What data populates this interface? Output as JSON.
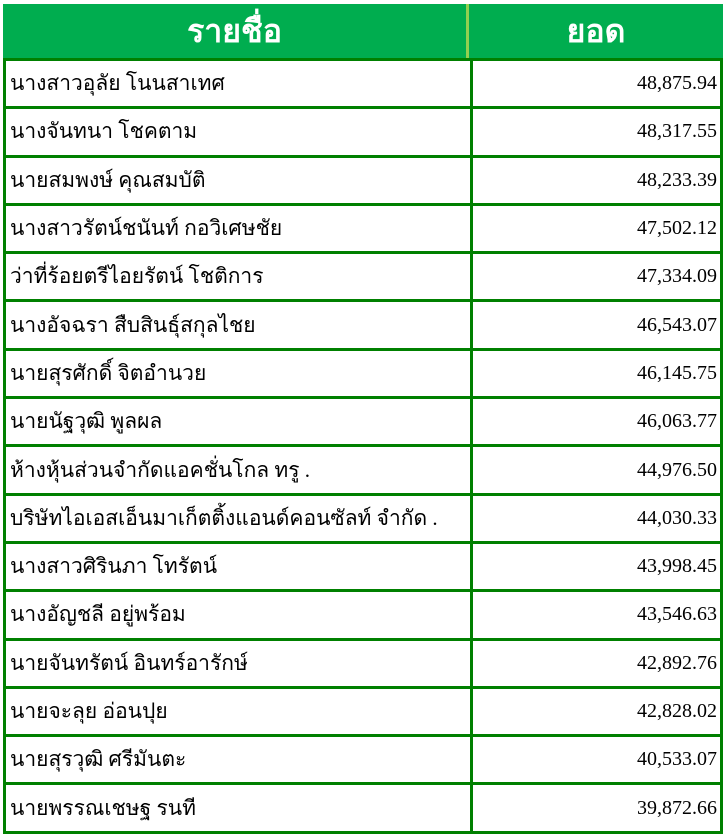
{
  "header": {
    "name_label": "รายชื่อ",
    "amount_label": "ยอด"
  },
  "colors": {
    "header_bg": "#00ad4f",
    "border": "#008000",
    "header_text": "#ffffff"
  },
  "rows": [
    {
      "name": "นางสาวอุลัย  โนนสาเทศ",
      "amount": "48,875.94"
    },
    {
      "name": "นางจันทนา โชคตาม",
      "amount": "48,317.55"
    },
    {
      "name": "นายสมพงษ์  คุณสมบัติ",
      "amount": "48,233.39"
    },
    {
      "name": "นางสาวรัตน์ชนันท์  กอวิเศษชัย",
      "amount": "47,502.12"
    },
    {
      "name": "ว่าที่ร้อยตรีไอยรัตน์  โชติการ",
      "amount": "47,334.09"
    },
    {
      "name": "นางอัจฉรา  สืบสินธุ์สกุลไชย",
      "amount": "46,543.07"
    },
    {
      "name": "นายสุรศักดิ์  จิตอำนวย",
      "amount": "46,145.75"
    },
    {
      "name": "นายนัฐวุฒิ  พูลผล",
      "amount": "46,063.77"
    },
    {
      "name": "ห้างหุ้นส่วนจำกัดแอคชั่นโกล ทรู .",
      "amount": "44,976.50"
    },
    {
      "name": "บริษัทไอเอสเอ็นมาเก็ตติ้งแอนด์คอนซัลท์ จำกัด .",
      "amount": "44,030.33"
    },
    {
      "name": "นางสาวศิรินภา  โทรัตน์",
      "amount": "43,998.45"
    },
    {
      "name": "นางอัญชลี อยู่พร้อม",
      "amount": "43,546.63"
    },
    {
      "name": "นายจันทรัตน์  อินทร์อารักษ์",
      "amount": "42,892.76"
    },
    {
      "name": "นายจะลุย อ่อนปุย",
      "amount": "42,828.02"
    },
    {
      "name": "นายสุรวุฒิ  ศรีมันตะ",
      "amount": "40,533.07"
    },
    {
      "name": "นายพรรณเชษฐ  รนที",
      "amount": "39,872.66"
    }
  ]
}
